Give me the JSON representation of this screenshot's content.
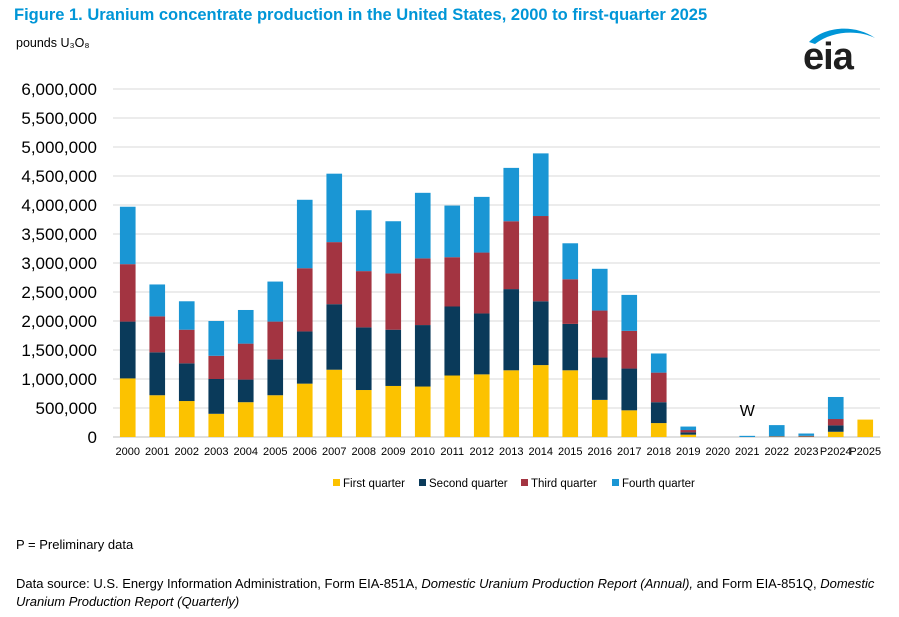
{
  "title": "Figure 1. Uranium concentrate production in the United States, 2000 to first-quarter 2025",
  "units": "pounds U₃O₈",
  "logo": {
    "text": "eia",
    "color": "#1f1f1f",
    "accent": "#0096d7"
  },
  "note": "P = Preliminary data",
  "source": {
    "prefix": "Data source: U.S. Energy Information Administration, Form EIA-851A,",
    "annual": "Domestic Uranium Production Report (Annual),",
    "middle": "and Form EIA-851Q,",
    "quarterly": "Domestic Uranium Production Report (Quarterly)"
  },
  "chart_data": {
    "type": "bar",
    "stacked": true,
    "categories": [
      "2000",
      "2001",
      "2002",
      "2003",
      "2004",
      "2005",
      "2006",
      "2007",
      "2008",
      "2009",
      "2010",
      "2011",
      "2012",
      "2013",
      "2014",
      "2015",
      "2016",
      "2017",
      "2018",
      "2019",
      "2020",
      "2021",
      "2022",
      "2023",
      "P2024",
      "P2025"
    ],
    "series": [
      {
        "name": "First quarter",
        "color": "#fcc200",
        "values": [
          1010000,
          720000,
          620000,
          400000,
          600000,
          720000,
          920000,
          1160000,
          810000,
          880000,
          870000,
          1060000,
          1080000,
          1150000,
          1240000,
          1150000,
          640000,
          460000,
          240000,
          40000,
          0,
          0,
          5000,
          5000,
          90000,
          300000
        ]
      },
      {
        "name": "Second quarter",
        "color": "#0a3a5a",
        "values": [
          980000,
          740000,
          650000,
          600000,
          390000,
          620000,
          900000,
          1130000,
          1080000,
          970000,
          1060000,
          1190000,
          1050000,
          1400000,
          1100000,
          800000,
          730000,
          720000,
          360000,
          40000,
          0,
          0,
          5000,
          5000,
          110000,
          0
        ]
      },
      {
        "name": "Third quarter",
        "color": "#a33441",
        "values": [
          990000,
          620000,
          580000,
          400000,
          620000,
          650000,
          1090000,
          1070000,
          970000,
          970000,
          1150000,
          850000,
          1050000,
          1170000,
          1470000,
          770000,
          810000,
          650000,
          510000,
          40000,
          0,
          0,
          5000,
          10000,
          110000,
          0
        ]
      },
      {
        "name": "Fourth quarter",
        "color": "#1a96d4",
        "values": [
          990000,
          550000,
          490000,
          600000,
          580000,
          690000,
          1180000,
          1180000,
          1050000,
          900000,
          1130000,
          890000,
          960000,
          920000,
          1080000,
          620000,
          720000,
          620000,
          330000,
          60000,
          0,
          20000,
          190000,
          40000,
          380000,
          0
        ]
      }
    ],
    "ylim": [
      0,
      6000000
    ],
    "yticks": [
      "0",
      "500,000",
      "1,000,000",
      "1,500,000",
      "2,000,000",
      "2,500,000",
      "3,000,000",
      "3,500,000",
      "4,000,000",
      "4,500,000",
      "5,000,000",
      "5,500,000",
      "6,000,000"
    ],
    "ytick_values": [
      0,
      500000,
      1000000,
      1500000,
      2000000,
      2500000,
      3000000,
      3500000,
      4000000,
      4500000,
      5000000,
      5500000,
      6000000
    ],
    "annotations": [
      {
        "category": "2021",
        "text": "W"
      }
    ],
    "grid": true,
    "legend_position": "bottom"
  }
}
